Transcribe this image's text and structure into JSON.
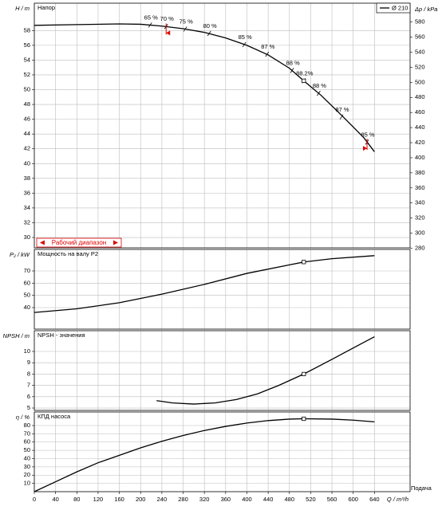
{
  "chart_data": [
    {
      "type": "line",
      "title": "Напор",
      "ylabel": "H / m",
      "y2label": "Δp / kPa",
      "xlim": [
        0,
        707
      ],
      "ylim": [
        28.6,
        61.7
      ],
      "yticks": [
        30,
        32,
        34,
        36,
        38,
        40,
        42,
        44,
        46,
        48,
        50,
        52,
        54,
        56,
        58
      ],
      "y2lim": [
        280.5,
        605
      ],
      "y2ticks": [
        280,
        300,
        320,
        340,
        360,
        380,
        400,
        420,
        440,
        460,
        480,
        500,
        520,
        540,
        560,
        580
      ],
      "grid": true,
      "legend": "upper right",
      "series": [
        {
          "name": "Ø 210",
          "color": "#000000",
          "x": [
            0,
            80,
            160,
            200,
            240,
            280,
            320,
            360,
            400,
            440,
            480,
            507,
            540,
            580,
            620,
            640
          ],
          "values": [
            58.7,
            58.8,
            58.9,
            58.85,
            58.6,
            58.25,
            57.75,
            57.0,
            56.0,
            54.7,
            52.9,
            51.2,
            49.2,
            46.4,
            43.5,
            41.6
          ]
        }
      ],
      "annotations": [
        {
          "text": "65 %",
          "x": 218,
          "y": 58.75
        },
        {
          "text": "70 %",
          "x": 248,
          "y": 58.55
        },
        {
          "text": "75 %",
          "x": 284,
          "y": 58.2
        },
        {
          "text": "80 %",
          "x": 329,
          "y": 57.6
        },
        {
          "text": "85 %",
          "x": 395,
          "y": 56.1
        },
        {
          "text": "87 %",
          "x": 438,
          "y": 54.8
        },
        {
          "text": "88 %",
          "x": 485,
          "y": 52.6
        },
        {
          "text": "88.2%",
          "x": 507,
          "y": 51.2
        },
        {
          "text": "88 %",
          "x": 535,
          "y": 49.5
        },
        {
          "text": "87 %",
          "x": 578,
          "y": 46.3
        },
        {
          "text": "85 %",
          "x": 626,
          "y": 42.9
        }
      ],
      "operating_point": {
        "x": 507,
        "y": 51.2
      },
      "working_range": {
        "label": "Рабочий диапазон",
        "x": [
          248,
          626
        ],
        "color": "#e00000"
      }
    },
    {
      "type": "line",
      "title": "Мощность на валу P2",
      "ylabel": "P₂ / kW",
      "xlim": [
        0,
        707
      ],
      "ylim": [
        22.4,
        87.6
      ],
      "yticks": [
        40,
        50,
        60,
        70
      ],
      "grid": true,
      "series": [
        {
          "color": "#000000",
          "x": [
            0,
            80,
            160,
            240,
            320,
            400,
            480,
            507,
            560,
            640
          ],
          "values": [
            36,
            39,
            44,
            51,
            59,
            68,
            75,
            77.3,
            80,
            82.5
          ]
        }
      ],
      "operating_point": {
        "x": 507,
        "y": 77.3
      }
    },
    {
      "type": "line",
      "title": "NPSH - значения",
      "ylabel": "NPSH / m",
      "xlim": [
        0,
        707
      ],
      "ylim": [
        4.79,
        11.83
      ],
      "yticks": [
        5,
        6,
        7,
        8,
        9,
        10
      ],
      "grid": true,
      "series": [
        {
          "color": "#000000",
          "x": [
            230,
            260,
            300,
            340,
            380,
            420,
            460,
            507,
            560,
            600,
            640
          ],
          "values": [
            5.65,
            5.45,
            5.35,
            5.45,
            5.75,
            6.25,
            7.0,
            8.0,
            9.3,
            10.3,
            11.3
          ]
        }
      ],
      "operating_point": {
        "x": 507,
        "y": 8.0
      }
    },
    {
      "type": "line",
      "title": "КПД насоса",
      "ylabel": "η / %",
      "xlim": [
        0,
        707
      ],
      "ylim": [
        0,
        96.4
      ],
      "yticks": [
        10,
        20,
        30,
        40,
        50,
        60,
        70,
        80
      ],
      "grid": true,
      "xticks": [
        0,
        40,
        80,
        120,
        160,
        200,
        240,
        280,
        320,
        360,
        400,
        440,
        480,
        520,
        560,
        600,
        640
      ],
      "xlabel": "Q / m³/h",
      "x_axis_title": "Подача",
      "series": [
        {
          "color": "#000000",
          "x": [
            0,
            40,
            80,
            120,
            160,
            200,
            240,
            280,
            320,
            360,
            400,
            440,
            480,
            507,
            560,
            600,
            640
          ],
          "values": [
            0,
            12,
            24,
            35,
            44,
            53,
            61,
            68,
            74,
            79,
            83,
            86,
            87.8,
            88.2,
            87.8,
            86.5,
            84.5
          ]
        }
      ],
      "operating_point": {
        "x": 507,
        "y": 88.2
      }
    }
  ]
}
